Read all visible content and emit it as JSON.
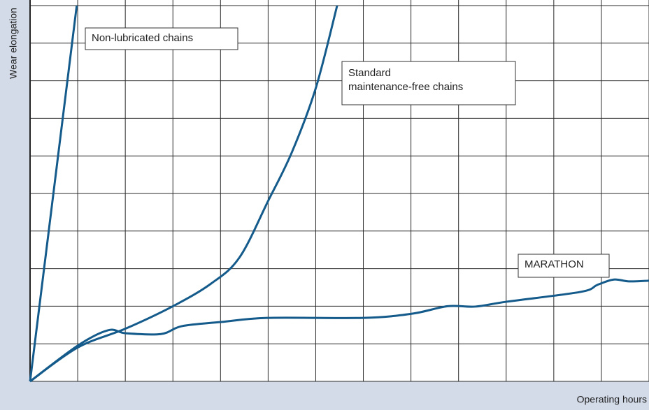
{
  "chart_data": {
    "type": "line",
    "y_label": "Wear elongation",
    "x_label": "Operating hours",
    "xlim": [
      0,
      13
    ],
    "ylim": [
      0,
      10
    ],
    "xticks": [
      0,
      1,
      2,
      3,
      4,
      5,
      6,
      7,
      8,
      9,
      10,
      11,
      12,
      13
    ],
    "yticks": [
      0,
      1,
      2,
      3,
      4,
      5,
      6,
      7,
      8,
      9,
      10
    ],
    "grid": true,
    "show_tick_labels": false,
    "series": [
      {
        "name": "Non-lubricated chains",
        "color": "#145b8b",
        "x": [
          0,
          0.98
        ],
        "values": [
          0,
          10
        ]
      },
      {
        "name": "Standard maintenance-free chains",
        "color": "#145b8b",
        "x": [
          0,
          1,
          2,
          3,
          3.8,
          4.4,
          5,
          5.5,
          6,
          6.45
        ],
        "values": [
          0,
          0.9,
          1.4,
          2.0,
          2.6,
          3.3,
          4.8,
          6.1,
          7.8,
          10
        ]
      },
      {
        "name": "MARATHON",
        "color": "#145b8b",
        "x": [
          0,
          1,
          1.64,
          2.01,
          2.75,
          3.19,
          4.01,
          5.01,
          7,
          8.02,
          8.77,
          9.35,
          10.01,
          11.56,
          11.92,
          12.26,
          12.58,
          13
        ],
        "values": [
          0,
          0.95,
          1.36,
          1.28,
          1.26,
          1.47,
          1.58,
          1.69,
          1.69,
          1.8,
          2.0,
          1.99,
          2.12,
          2.38,
          2.57,
          2.71,
          2.66,
          2.68
        ]
      }
    ],
    "annotations": [
      {
        "lines": [
          "Non-lubricated chains"
        ]
      },
      {
        "lines": [
          "Standard",
          "maintenance-free chains"
        ]
      },
      {
        "lines": [
          "MARATHON"
        ]
      }
    ]
  }
}
